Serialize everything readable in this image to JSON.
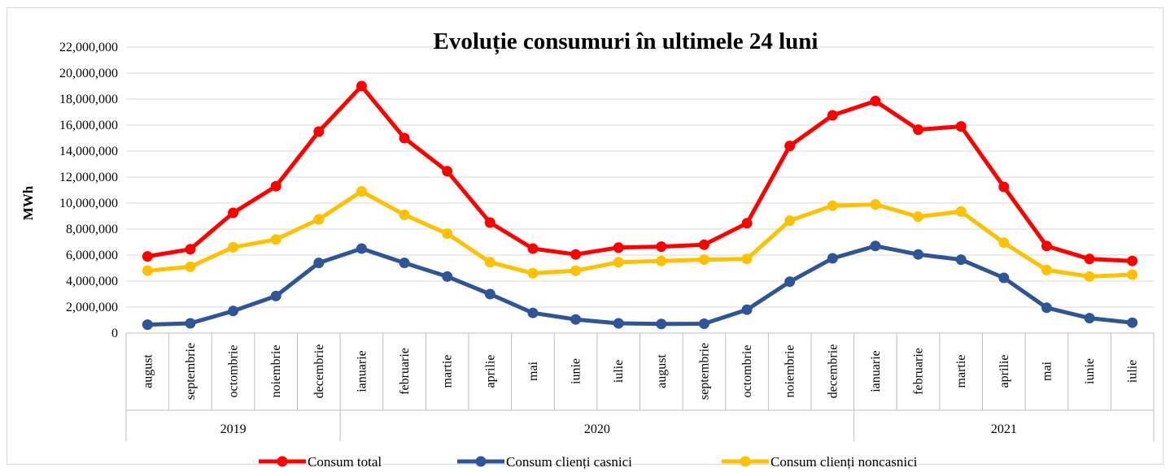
{
  "chart_data": {
    "type": "line",
    "title": "Evoluție consumuri în ultimele 24 luni",
    "ylabel": "MWh",
    "xlabel": "",
    "ylim": [
      0,
      22000000
    ],
    "ytick_step": 2000000,
    "ytick_labels": [
      "0",
      "2,000,000",
      "4,000,000",
      "6,000,000",
      "8,000,000",
      "10,000,000",
      "12,000,000",
      "14,000,000",
      "16,000,000",
      "18,000,000",
      "20,000,000",
      "22,000,000"
    ],
    "grid": true,
    "legend_position": "bottom",
    "categories": [
      "august",
      "septembrie",
      "octombrie",
      "noiembrie",
      "decembrie",
      "ianuarie",
      "februarie",
      "martie",
      "aprilie",
      "mai",
      "iunie",
      "iulie",
      "august",
      "septembrie",
      "octombrie",
      "noiembrie",
      "decembrie",
      "ianuarie",
      "februarie",
      "martie",
      "aprilie",
      "mai",
      "iunie",
      "iulie"
    ],
    "year_groups": [
      {
        "label": "2019",
        "start": 0,
        "end": 4
      },
      {
        "label": "2020",
        "start": 5,
        "end": 16
      },
      {
        "label": "2021",
        "start": 17,
        "end": 23
      }
    ],
    "series": [
      {
        "name": "Consum total",
        "color": "#ff0000",
        "values": [
          5900000,
          6450000,
          9250000,
          11300000,
          15500000,
          19000000,
          15000000,
          12450000,
          8500000,
          6500000,
          6050000,
          6580000,
          6650000,
          6800000,
          8450000,
          14400000,
          16750000,
          17850000,
          15650000,
          15900000,
          11250000,
          6700000,
          5700000,
          5550000
        ]
      },
      {
        "name": "Consum clienți casnici",
        "color": "#2e5597",
        "values": [
          650000,
          750000,
          1700000,
          2850000,
          5400000,
          6500000,
          5400000,
          4350000,
          3000000,
          1550000,
          1050000,
          750000,
          700000,
          720000,
          1800000,
          3950000,
          5750000,
          6700000,
          6050000,
          5650000,
          4250000,
          1950000,
          1150000,
          800000
        ]
      },
      {
        "name": "Consum clienți noncasnici",
        "color": "#ffc000",
        "values": [
          4800000,
          5100000,
          6600000,
          7200000,
          8750000,
          10900000,
          9100000,
          7650000,
          5450000,
          4600000,
          4800000,
          5450000,
          5550000,
          5650000,
          5700000,
          8650000,
          9800000,
          9900000,
          8950000,
          9350000,
          6950000,
          4850000,
          4350000,
          4500000
        ]
      }
    ]
  }
}
